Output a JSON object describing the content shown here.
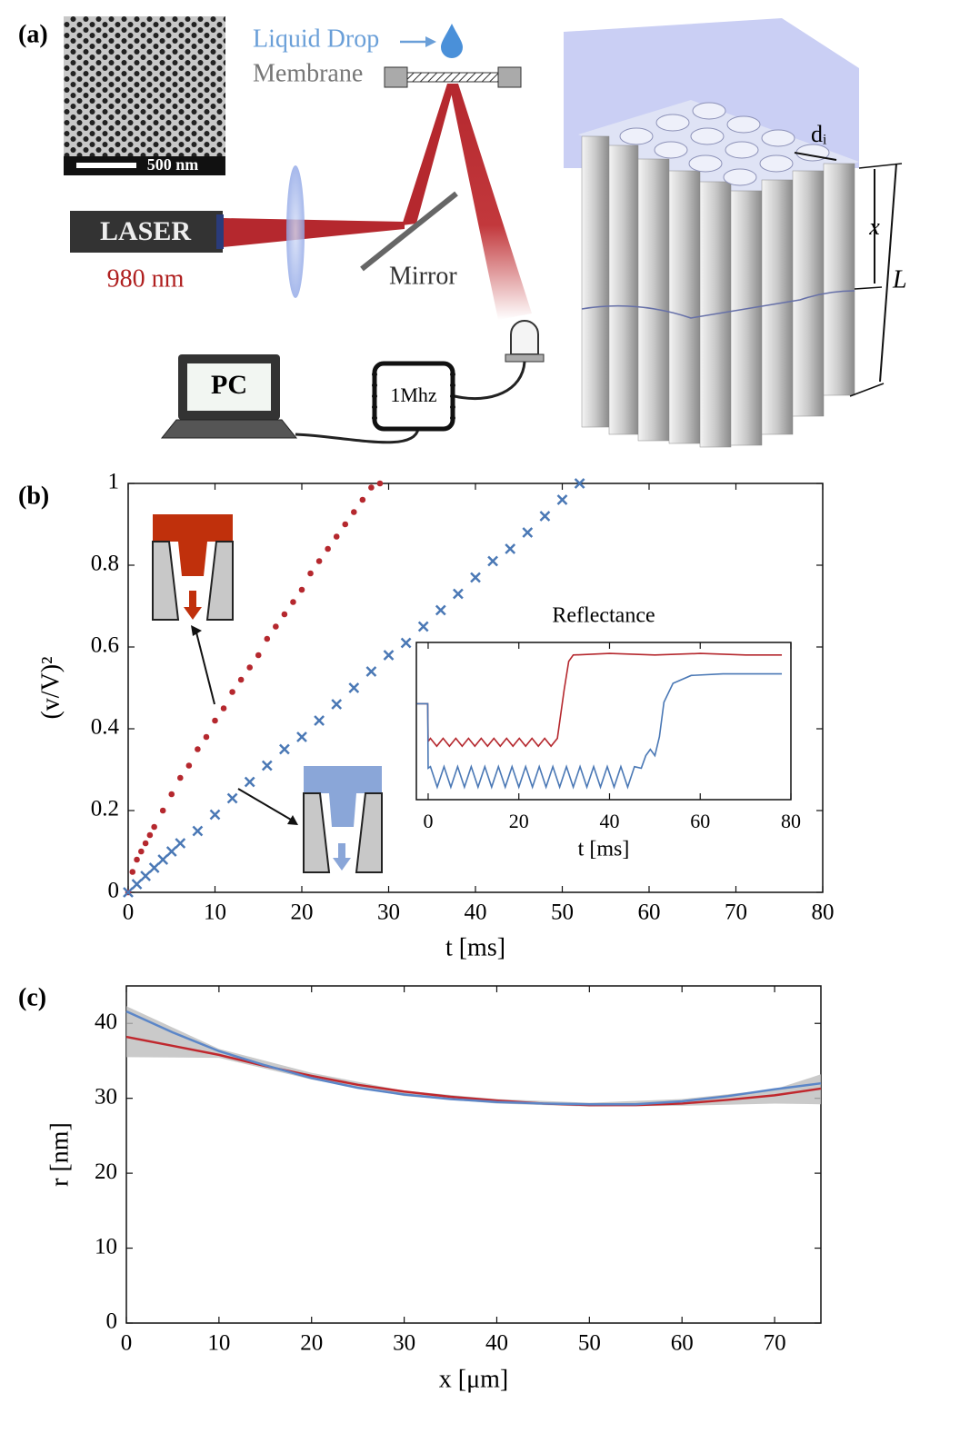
{
  "diagram": {
    "panel_label": "(a)",
    "scale_bar": "500 nm",
    "liquid_drop": "Liquid Drop",
    "membrane": "Membrane",
    "laser": "LASER",
    "wavelength": "980 nm",
    "mirror": "Mirror",
    "pc": "PC",
    "frequency": "1Mhz",
    "pore_diameter": "dᵢ",
    "depth": "x",
    "length": "L"
  },
  "chart_data": [
    {
      "type": "scatter",
      "panel_label": "(b)",
      "x_label": "t [ms]",
      "y_label": "(v/V)²",
      "xlim": [
        0,
        80
      ],
      "xticks": [
        0,
        10,
        20,
        30,
        40,
        50,
        60,
        70,
        80
      ],
      "ylim": [
        0,
        1
      ],
      "yticks": [
        0,
        0.2,
        0.4,
        0.6,
        0.8,
        1
      ],
      "series": [
        {
          "color": "#b5282e",
          "marker": "o",
          "x": [
            0,
            0.5,
            1,
            1.5,
            2,
            2.5,
            3,
            4,
            5,
            6,
            7,
            8,
            9,
            10,
            11,
            12,
            13,
            14,
            15,
            16,
            17,
            18,
            19,
            20,
            21,
            22,
            23,
            24,
            25,
            26,
            27,
            28,
            29
          ],
          "values": [
            0,
            0.05,
            0.08,
            0.1,
            0.12,
            0.14,
            0.16,
            0.2,
            0.24,
            0.28,
            0.31,
            0.35,
            0.38,
            0.42,
            0.45,
            0.49,
            0.52,
            0.55,
            0.58,
            0.62,
            0.65,
            0.68,
            0.71,
            0.74,
            0.78,
            0.81,
            0.84,
            0.87,
            0.9,
            0.93,
            0.96,
            0.99,
            1
          ]
        },
        {
          "color": "#4a78b5",
          "marker": "x",
          "x": [
            0,
            1,
            2,
            3,
            4,
            5,
            6,
            8,
            10,
            12,
            14,
            16,
            18,
            20,
            22,
            24,
            26,
            28,
            30,
            32,
            34,
            36,
            38,
            40,
            42,
            44,
            46,
            48,
            50,
            52
          ],
          "values": [
            0,
            0.02,
            0.04,
            0.06,
            0.08,
            0.1,
            0.12,
            0.15,
            0.19,
            0.23,
            0.27,
            0.31,
            0.35,
            0.38,
            0.42,
            0.46,
            0.5,
            0.54,
            0.58,
            0.61,
            0.65,
            0.69,
            0.73,
            0.77,
            0.81,
            0.84,
            0.88,
            0.92,
            0.96,
            1
          ]
        }
      ]
    },
    {
      "type": "line",
      "title": "Reflectance",
      "x_label": "t [ms]",
      "xlim": [
        -2.6,
        80
      ],
      "xticks": [
        0,
        20,
        40,
        60,
        80
      ],
      "ylim": [
        0,
        1
      ],
      "series": [
        {
          "color": "#b5282e",
          "x": [
            -2.5,
            -0.1,
            0,
            0.5,
            1.9,
            3.3,
            4.7,
            6.1,
            7.5,
            8.9,
            10.3,
            11.7,
            13.1,
            14.5,
            15.9,
            17.3,
            18.7,
            20.1,
            21.5,
            22.9,
            24.3,
            25.7,
            27.1,
            28.5,
            30,
            31,
            32,
            40,
            50,
            60,
            70,
            78
          ],
          "values": [
            0.61,
            0.61,
            0.37,
            0.39,
            0.34,
            0.39,
            0.34,
            0.39,
            0.34,
            0.39,
            0.34,
            0.39,
            0.34,
            0.39,
            0.34,
            0.39,
            0.34,
            0.39,
            0.34,
            0.39,
            0.34,
            0.39,
            0.34,
            0.39,
            0.7,
            0.88,
            0.92,
            0.93,
            0.92,
            0.93,
            0.92,
            0.92
          ]
        },
        {
          "color": "#4a78b5",
          "x": [
            -2.5,
            -0.1,
            0,
            0.5,
            2,
            3.5,
            5,
            6.5,
            8,
            9.5,
            11,
            12.5,
            14,
            15.5,
            17,
            18.5,
            20,
            21.5,
            23,
            24.5,
            26,
            27.5,
            29,
            30.5,
            32,
            33.5,
            35,
            36.5,
            38,
            39.5,
            41,
            42.5,
            44,
            45.5,
            47,
            48,
            49,
            50,
            51,
            52,
            54,
            58,
            65,
            78
          ],
          "values": [
            0.61,
            0.61,
            0.2,
            0.21,
            0.08,
            0.21,
            0.08,
            0.21,
            0.08,
            0.21,
            0.08,
            0.21,
            0.08,
            0.21,
            0.08,
            0.21,
            0.08,
            0.21,
            0.08,
            0.21,
            0.08,
            0.21,
            0.08,
            0.21,
            0.08,
            0.21,
            0.08,
            0.21,
            0.08,
            0.21,
            0.08,
            0.21,
            0.08,
            0.21,
            0.2,
            0.28,
            0.32,
            0.28,
            0.4,
            0.62,
            0.74,
            0.79,
            0.8,
            0.8
          ]
        }
      ]
    },
    {
      "type": "line",
      "panel_label": "(c)",
      "x_label": "x [μm]",
      "y_label": "r [nm]",
      "xlim": [
        0,
        75
      ],
      "xticks": [
        0,
        10,
        20,
        30,
        40,
        50,
        60,
        70
      ],
      "ylim": [
        0,
        45
      ],
      "yticks": [
        0,
        10,
        20,
        30,
        40
      ],
      "band": {
        "color": "#bdbdbd",
        "x": [
          0,
          10,
          20,
          30,
          40,
          50,
          60,
          70,
          75
        ],
        "lower": [
          35.5,
          35.4,
          32.5,
          30.3,
          29.3,
          28.9,
          29,
          29.3,
          29.2
        ],
        "upper": [
          42.3,
          36.6,
          33.4,
          31,
          29.9,
          29.4,
          29.9,
          31.2,
          33.2
        ]
      },
      "series": [
        {
          "color": "#c0282e",
          "x": [
            0,
            5,
            10,
            15,
            20,
            25,
            30,
            35,
            40,
            45,
            50,
            55,
            60,
            65,
            70,
            75
          ],
          "values": [
            38.2,
            37,
            35.8,
            34.3,
            33,
            31.8,
            30.9,
            30.2,
            29.7,
            29.3,
            29.1,
            29.1,
            29.3,
            29.8,
            30.4,
            31.3
          ]
        },
        {
          "color": "#5b86c8",
          "x": [
            0,
            5,
            10,
            15,
            20,
            25,
            30,
            35,
            40,
            45,
            50,
            55,
            60,
            65,
            70,
            75
          ],
          "values": [
            41.6,
            38.8,
            36.3,
            34.4,
            32.7,
            31.4,
            30.5,
            29.9,
            29.5,
            29.3,
            29.2,
            29.2,
            29.6,
            30.3,
            31.2,
            32
          ]
        }
      ]
    }
  ]
}
